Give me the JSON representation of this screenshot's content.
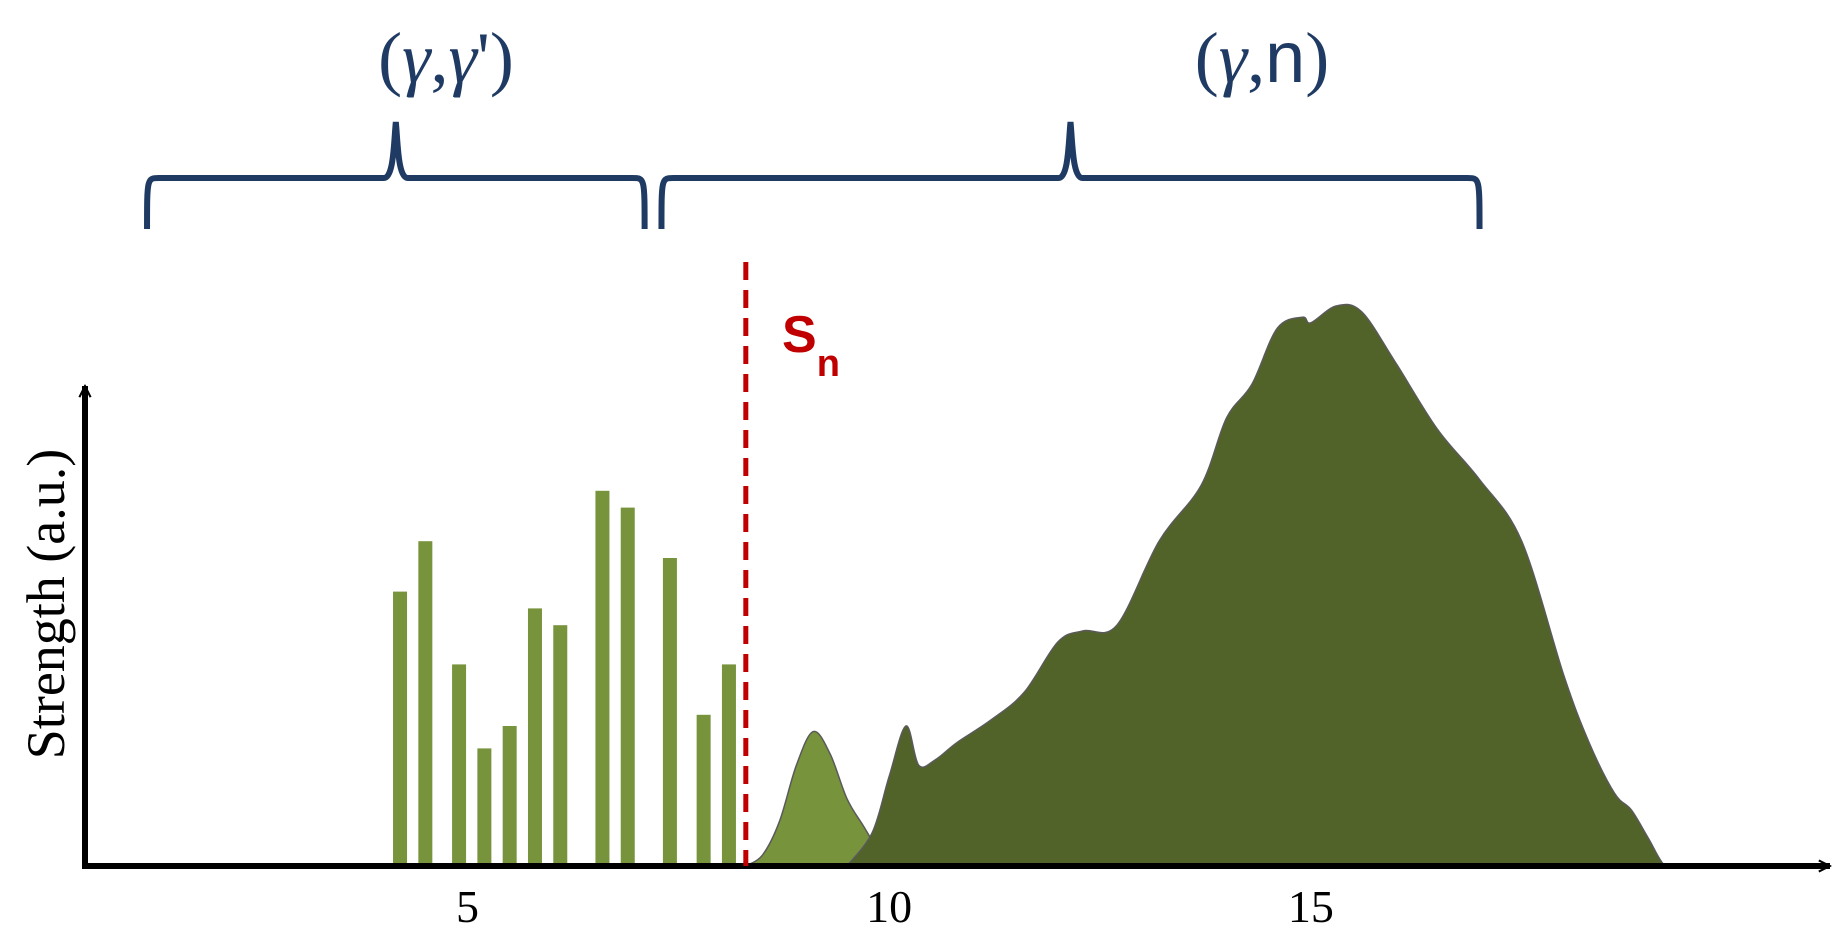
{
  "chart_data": {
    "type": "bar",
    "title": "",
    "xlabel": "",
    "ylabel": "Strength (a.u.)",
    "xlim": [
      0.5,
      20.8
    ],
    "ylim": [
      0,
      1
    ],
    "x_ticks": [
      5,
      10,
      15
    ],
    "x_tick_labels": [
      "5",
      "10",
      "15"
    ],
    "threshold": {
      "x": 8.3,
      "label_main": "S",
      "label_sub": "n",
      "color": "#c00000"
    },
    "regions": [
      {
        "label_open": "(",
        "label_g1": "γ",
        "label_sep": ",",
        "label_g2": "γ",
        "label_prime": "'",
        "label_close": ")",
        "x_range": [
          1.2,
          7.1
        ]
      },
      {
        "label_open": "(",
        "label_g1": "γ",
        "label_sep": ",",
        "label_n": "n",
        "label_close": ")",
        "x_range": [
          7.3,
          17.0
        ]
      }
    ],
    "series": [
      {
        "kind": "bars",
        "color": "#77933c",
        "x": [
          4.2,
          4.5,
          4.9,
          5.2,
          5.5,
          5.8,
          6.1,
          6.6,
          6.9,
          7.4,
          7.8,
          8.1
        ],
        "values": [
          0.49,
          0.58,
          0.36,
          0.21,
          0.25,
          0.46,
          0.43,
          0.67,
          0.64,
          0.55,
          0.27,
          0.36
        ]
      },
      {
        "kind": "area",
        "color": "#77933c",
        "x": [
          8.3,
          8.5,
          8.7,
          8.9,
          9.1,
          9.3,
          9.5,
          9.7,
          9.9,
          10.0
        ],
        "values": [
          0.0,
          0.02,
          0.08,
          0.18,
          0.24,
          0.2,
          0.12,
          0.07,
          0.02,
          0.0
        ]
      },
      {
        "kind": "area",
        "color": "#52632a",
        "x": [
          9.5,
          9.8,
          10.0,
          10.2,
          10.35,
          10.55,
          10.8,
          11.2,
          11.6,
          12.0,
          12.3,
          12.7,
          13.2,
          13.7,
          14.0,
          14.3,
          14.6,
          14.9,
          15.0,
          15.3,
          15.6,
          16.0,
          16.5,
          17.0,
          17.5,
          18.0,
          18.3,
          18.6,
          18.8,
          19.0,
          19.2,
          19.4
        ],
        "values": [
          0.0,
          0.06,
          0.16,
          0.25,
          0.18,
          0.19,
          0.22,
          0.26,
          0.31,
          0.4,
          0.42,
          0.43,
          0.58,
          0.68,
          0.8,
          0.86,
          0.96,
          0.98,
          0.97,
          1.0,
          0.99,
          0.9,
          0.78,
          0.69,
          0.58,
          0.34,
          0.22,
          0.13,
          0.1,
          0.05,
          0.0,
          0.0
        ]
      }
    ]
  },
  "colors": {
    "axis": "#000000",
    "brace": "#1f3b63",
    "threshold": "#c00000",
    "bar": "#77933c",
    "area_light": "#77933c",
    "area_dark": "#52632a"
  }
}
